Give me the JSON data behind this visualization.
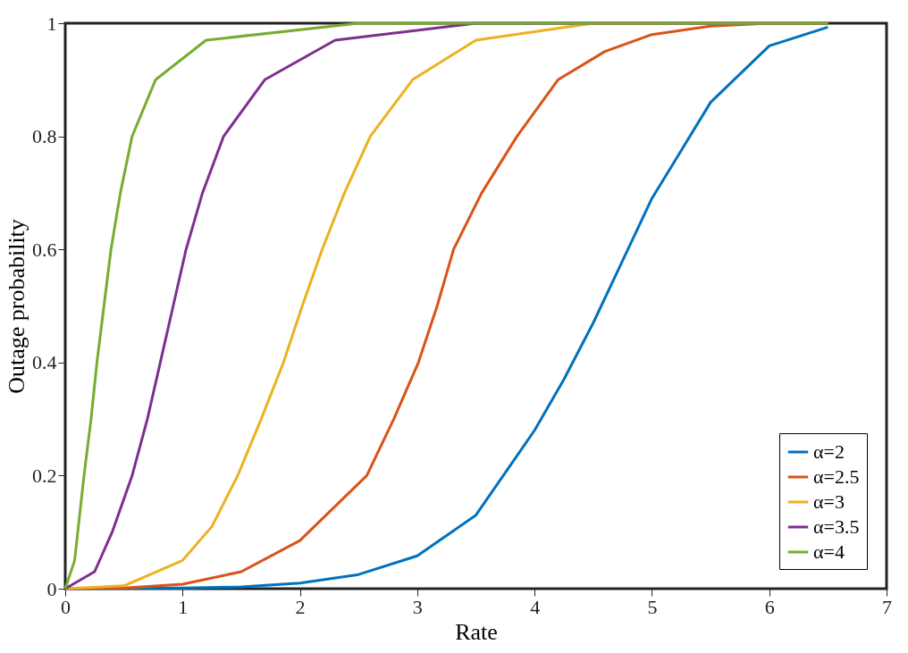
{
  "chart_data": {
    "type": "line",
    "xlabel": "Rate",
    "ylabel": "Outage probability",
    "xlim": [
      0,
      7
    ],
    "ylim": [
      0,
      1
    ],
    "xticks": [
      0,
      1,
      2,
      3,
      4,
      5,
      6,
      7
    ],
    "yticks": [
      0,
      0.2,
      0.4,
      0.6,
      0.8,
      1
    ],
    "grid": false,
    "legend": "bottom right",
    "marker": "none",
    "line_style": "solid",
    "series": [
      {
        "name": "α=2",
        "color": "#0072bd",
        "x": [
          0,
          1,
          1.5,
          2,
          2.5,
          3,
          3.5,
          4,
          4.25,
          4.5,
          4.75,
          5,
          5.5,
          6,
          6.5
        ],
        "values": [
          0,
          0.001,
          0.003,
          0.01,
          0.025,
          0.058,
          0.13,
          0.28,
          0.37,
          0.47,
          0.58,
          0.69,
          0.86,
          0.96,
          0.993
        ]
      },
      {
        "name": "α=2.5",
        "color": "#d95319",
        "x": [
          0,
          0.5,
          1,
          1.5,
          2,
          2.57,
          2.8,
          3.01,
          3.17,
          3.31,
          3.55,
          3.85,
          4.2,
          4.6,
          5,
          5.5,
          6,
          6.5
        ],
        "values": [
          0,
          0.001,
          0.008,
          0.03,
          0.085,
          0.2,
          0.3,
          0.4,
          0.5,
          0.6,
          0.7,
          0.8,
          0.9,
          0.95,
          0.98,
          0.995,
          1,
          1
        ]
      },
      {
        "name": "α=3",
        "color": "#edb120",
        "x": [
          0,
          0.5,
          1,
          1.25,
          1.47,
          1.67,
          1.86,
          2.02,
          2.19,
          2.38,
          2.6,
          2.96,
          3.5,
          4.5,
          6.5
        ],
        "values": [
          0,
          0.005,
          0.05,
          0.11,
          0.2,
          0.3,
          0.4,
          0.5,
          0.6,
          0.7,
          0.8,
          0.9,
          0.97,
          1,
          1
        ]
      },
      {
        "name": "α=3.5",
        "color": "#7e2f8e",
        "x": [
          0,
          0.25,
          0.4,
          0.57,
          0.7,
          0.81,
          0.92,
          1.03,
          1.17,
          1.35,
          1.7,
          2.3,
          3.5,
          6.5
        ],
        "values": [
          0,
          0.03,
          0.1,
          0.2,
          0.3,
          0.4,
          0.5,
          0.6,
          0.7,
          0.8,
          0.9,
          0.97,
          1,
          1
        ]
      },
      {
        "name": "α=4",
        "color": "#77ac30",
        "x": [
          0,
          0.08,
          0.16,
          0.22,
          0.27,
          0.33,
          0.39,
          0.47,
          0.57,
          0.77,
          1.2,
          2.5,
          6.5
        ],
        "values": [
          0,
          0.05,
          0.2,
          0.3,
          0.4,
          0.5,
          0.6,
          0.7,
          0.8,
          0.9,
          0.97,
          1,
          1
        ]
      }
    ]
  }
}
